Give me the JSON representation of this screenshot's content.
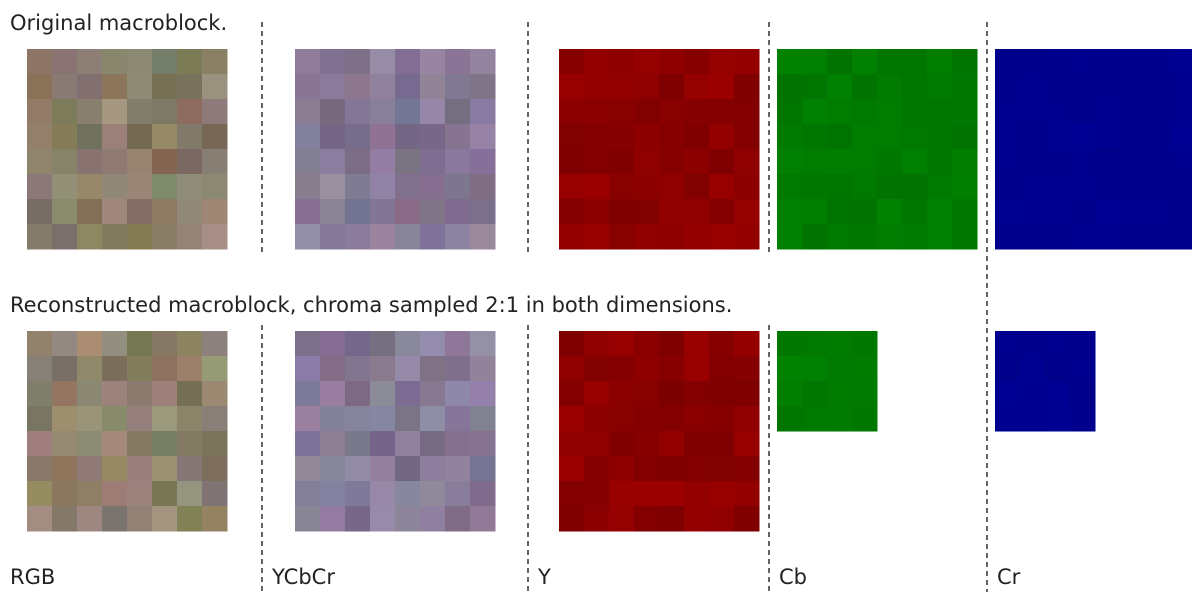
{
  "headings": {
    "original": "Original macroblock.",
    "reconstructed": "Reconstructed macroblock, chroma sampled 2:1 in both dimensions."
  },
  "labels": [
    "RGB",
    "YCbCr",
    "Y",
    "Cb",
    "Cr"
  ]
}
